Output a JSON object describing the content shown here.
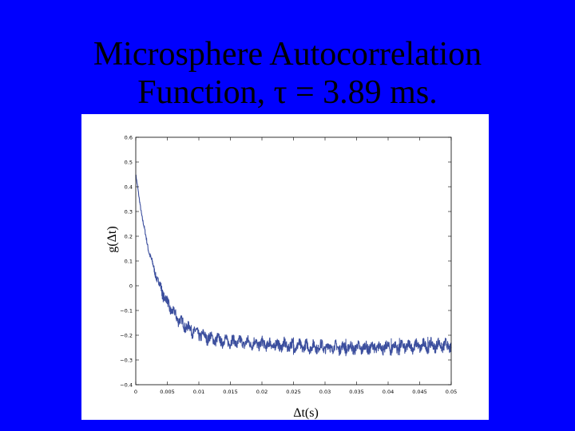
{
  "slide": {
    "title_line1": "Microsphere Autocorrelation",
    "title_line2": "Function, τ = 3.89 ms.",
    "background": "#0000fe"
  },
  "chart_data": {
    "type": "line",
    "title": "",
    "xlabel": "Δt(s)",
    "ylabel": "g(Δt)",
    "xlim": [
      0,
      0.05
    ],
    "ylim": [
      -0.4,
      0.6
    ],
    "xticks": [
      0,
      0.005,
      0.01,
      0.015,
      0.02,
      0.025,
      0.03,
      0.035,
      0.04,
      0.045,
      0.05
    ],
    "xtick_labels": [
      "0",
      "0.005",
      "0.01",
      "0.015",
      "0.02",
      "0.025",
      "0.03",
      "0.035",
      "0.04",
      "0.045",
      "0.05"
    ],
    "yticks": [
      0.6,
      0.5,
      0.4,
      0.3,
      0.2,
      0.1,
      0,
      -0.1,
      -0.2,
      -0.3,
      -0.4
    ],
    "ytick_labels": [
      "0.6",
      "0.5",
      "0.4",
      "0.3",
      "0.2",
      "0.1",
      "0",
      "−0.1",
      "−0.2",
      "−0.3",
      "−0.4"
    ],
    "grid": false,
    "series_color": "#3c4f9e",
    "series": [
      {
        "x": [
          0,
          0.0005,
          0.001,
          0.0015,
          0.002,
          0.0025,
          0.003,
          0.0035,
          0.004,
          0.0045,
          0.005,
          0.006,
          0.007,
          0.008,
          0.009,
          0.01,
          0.011,
          0.012,
          0.013,
          0.014,
          0.015,
          0.016,
          0.018,
          0.02,
          0.022,
          0.024,
          0.026,
          0.028,
          0.03,
          0.032,
          0.034,
          0.036,
          0.038,
          0.04,
          0.042,
          0.044,
          0.046,
          0.048,
          0.05
        ],
        "y": [
          0.45,
          0.36,
          0.28,
          0.21,
          0.15,
          0.1,
          0.06,
          0.02,
          -0.01,
          -0.04,
          -0.07,
          -0.11,
          -0.14,
          -0.165,
          -0.18,
          -0.195,
          -0.205,
          -0.212,
          -0.218,
          -0.222,
          -0.225,
          -0.228,
          -0.232,
          -0.236,
          -0.24,
          -0.243,
          -0.245,
          -0.247,
          -0.248,
          -0.249,
          -0.25,
          -0.25,
          -0.25,
          -0.248,
          -0.246,
          -0.244,
          -0.242,
          -0.24,
          -0.245
        ]
      }
    ]
  }
}
